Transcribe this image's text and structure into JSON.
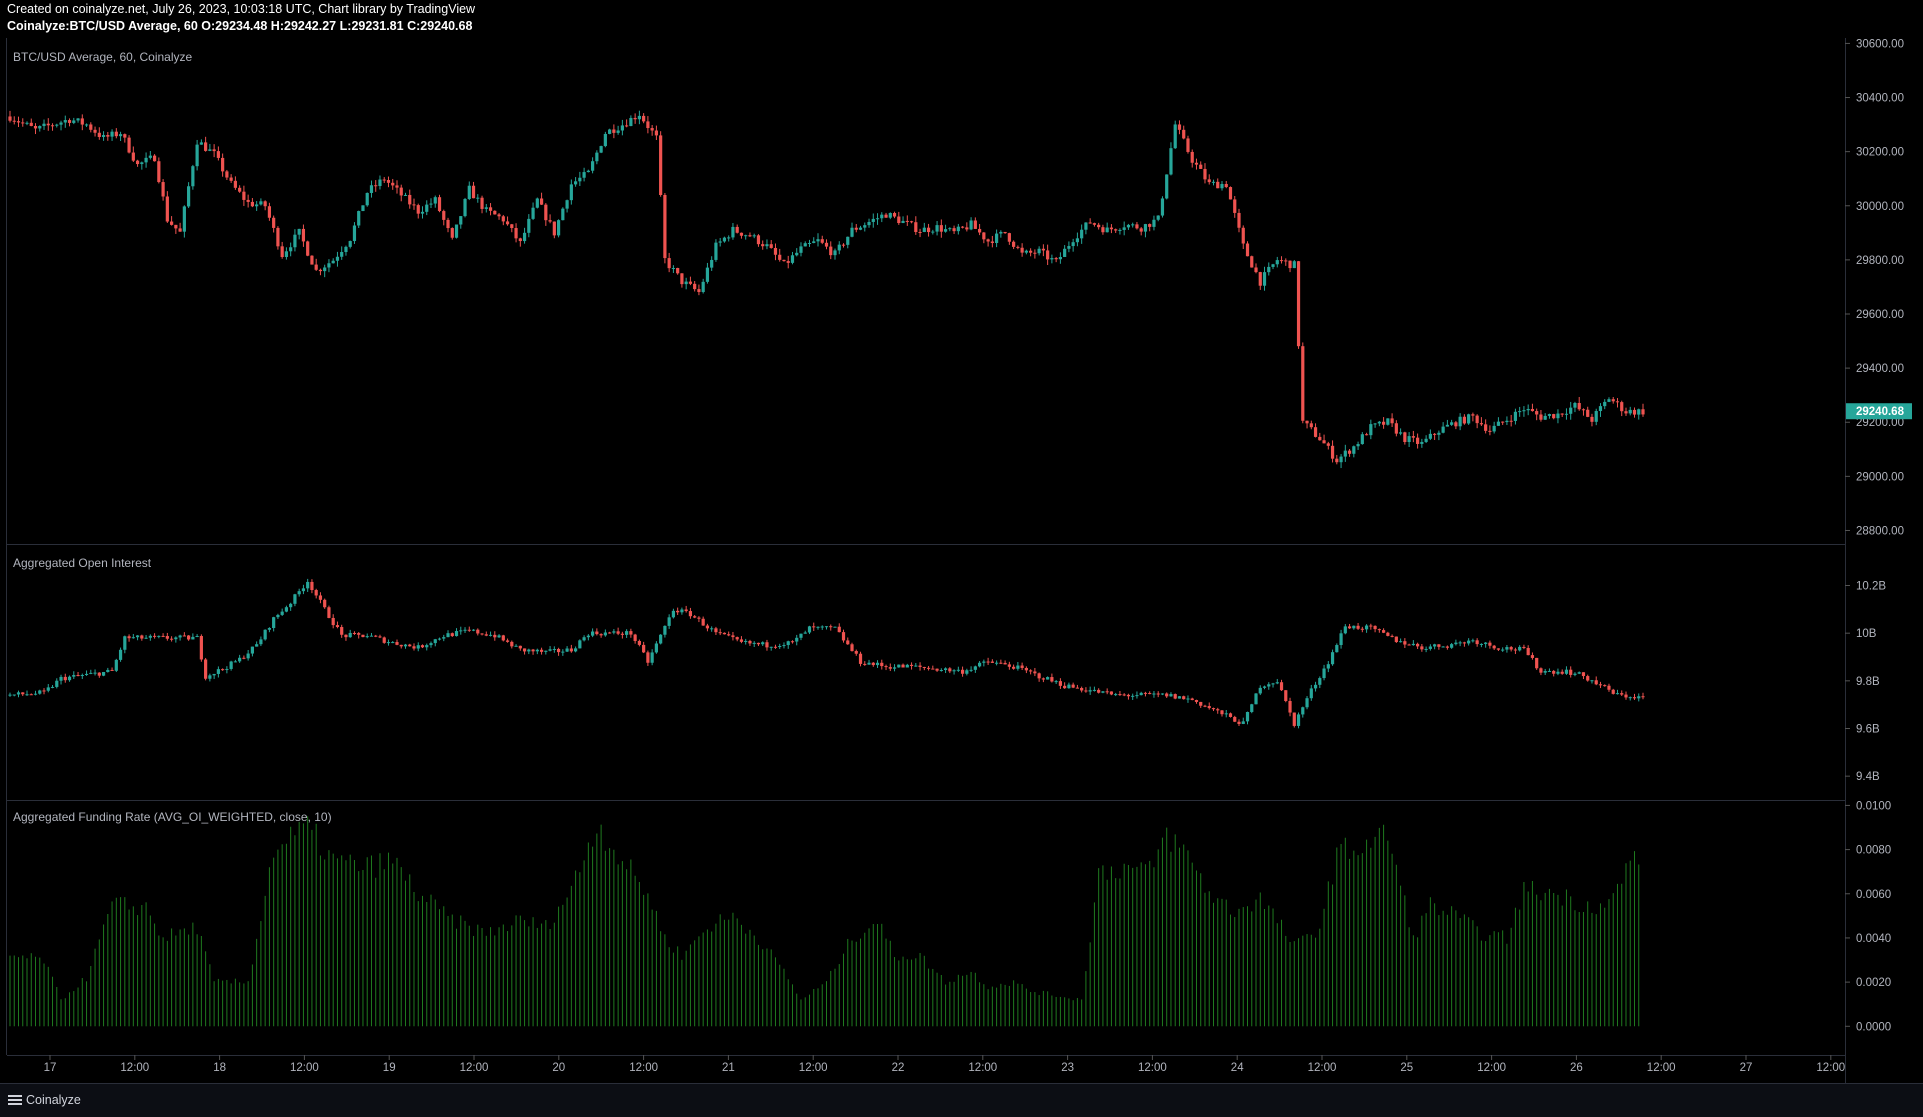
{
  "header": {
    "created_line": "Created on coinalyze.net, July 26, 2023, 10:03:18 UTC, Chart library by TradingView",
    "symbol_line": {
      "symbol": "Coinalyze:BTC/USD Average, 60",
      "o_label": "O:",
      "o": "29234.48",
      "h_label": "H:",
      "h": "29242.27",
      "l_label": "L:",
      "l": "29231.81",
      "c_label": "C:",
      "c": "29240.68"
    }
  },
  "footer": {
    "brand": "Coinalyze"
  },
  "colors": {
    "up": "#26a69a",
    "down": "#ef5350",
    "funding": "#1f7a1f",
    "grid": "#1a1d24",
    "text": "#b2b5be"
  },
  "chart_data": [
    {
      "type": "candlestick",
      "title": "BTC/USD Average, 60, Coinalyze",
      "ylim": [
        28750,
        30620
      ],
      "yticks": [
        "30600.00",
        "30400.00",
        "30200.00",
        "30000.00",
        "29800.00",
        "29600.00",
        "29400.00",
        "29200.00",
        "29000.00",
        "28800.00"
      ],
      "ytick_values": [
        30600,
        30400,
        30200,
        30000,
        29800,
        29600,
        29400,
        29200,
        29000,
        28800
      ],
      "last_price": "29240.68",
      "x_tick_labels": [
        "17",
        "12:00",
        "18",
        "12:00",
        "19",
        "12:00",
        "20",
        "12:00",
        "21",
        "12:00",
        "22",
        "12:00",
        "23",
        "12:00",
        "24",
        "12:00",
        "25",
        "12:00",
        "26",
        "12:00",
        "27",
        "12:00"
      ],
      "anchor_closes": [
        [
          0,
          30330
        ],
        [
          6,
          30280
        ],
        [
          10,
          30300
        ],
        [
          14,
          30320
        ],
        [
          18,
          30300
        ],
        [
          22,
          30250
        ],
        [
          26,
          30270
        ],
        [
          30,
          30150
        ],
        [
          34,
          30180
        ],
        [
          37,
          29950
        ],
        [
          40,
          29900
        ],
        [
          44,
          30240
        ],
        [
          48,
          30190
        ],
        [
          52,
          30080
        ],
        [
          56,
          30010
        ],
        [
          60,
          30000
        ],
        [
          64,
          29820
        ],
        [
          68,
          29900
        ],
        [
          72,
          29760
        ],
        [
          76,
          29800
        ],
        [
          80,
          29880
        ],
        [
          84,
          30050
        ],
        [
          88,
          30100
        ],
        [
          92,
          30040
        ],
        [
          96,
          29980
        ],
        [
          100,
          30020
        ],
        [
          104,
          29870
        ],
        [
          108,
          30060
        ],
        [
          112,
          29980
        ],
        [
          116,
          29950
        ],
        [
          120,
          29860
        ],
        [
          124,
          30020
        ],
        [
          128,
          29900
        ],
        [
          132,
          30080
        ],
        [
          136,
          30120
        ],
        [
          140,
          30270
        ],
        [
          144,
          30300
        ],
        [
          148,
          30340
        ],
        [
          152,
          30250
        ],
        [
          154,
          29800
        ],
        [
          158,
          29720
        ],
        [
          162,
          29680
        ],
        [
          166,
          29850
        ],
        [
          170,
          29910
        ],
        [
          174,
          29890
        ],
        [
          178,
          29850
        ],
        [
          182,
          29780
        ],
        [
          186,
          29840
        ],
        [
          190,
          29870
        ],
        [
          194,
          29820
        ],
        [
          198,
          29910
        ],
        [
          202,
          29940
        ],
        [
          206,
          29970
        ],
        [
          210,
          29940
        ],
        [
          214,
          29910
        ],
        [
          218,
          29920
        ],
        [
          222,
          29900
        ],
        [
          226,
          29930
        ],
        [
          230,
          29870
        ],
        [
          234,
          29900
        ],
        [
          238,
          29820
        ],
        [
          242,
          29830
        ],
        [
          246,
          29790
        ],
        [
          250,
          29880
        ],
        [
          254,
          29940
        ],
        [
          258,
          29910
        ],
        [
          262,
          29930
        ],
        [
          266,
          29920
        ],
        [
          270,
          29950
        ],
        [
          274,
          30300
        ],
        [
          278,
          30170
        ],
        [
          282,
          30080
        ],
        [
          286,
          30080
        ],
        [
          290,
          29850
        ],
        [
          294,
          29720
        ],
        [
          298,
          29800
        ],
        [
          302,
          29780
        ],
        [
          304,
          29200
        ],
        [
          308,
          29140
        ],
        [
          312,
          29060
        ],
        [
          316,
          29110
        ],
        [
          320,
          29180
        ],
        [
          324,
          29200
        ],
        [
          328,
          29140
        ],
        [
          332,
          29120
        ],
        [
          336,
          29170
        ],
        [
          340,
          29200
        ],
        [
          344,
          29220
        ],
        [
          348,
          29170
        ],
        [
          352,
          29210
        ],
        [
          356,
          29250
        ],
        [
          360,
          29220
        ],
        [
          364,
          29230
        ],
        [
          368,
          29260
        ],
        [
          372,
          29210
        ],
        [
          376,
          29290
        ],
        [
          380,
          29240
        ],
        [
          384,
          29240
        ]
      ]
    },
    {
      "type": "candlestick",
      "title": "Aggregated Open Interest",
      "ylim": [
        9.3,
        10.37
      ],
      "yticks": [
        "10.2B",
        "10B",
        "9.8B",
        "9.6B",
        "9.4B"
      ],
      "ytick_values": [
        10.2,
        10.0,
        9.8,
        9.6,
        9.4
      ],
      "anchor_closes": [
        [
          0,
          9.74
        ],
        [
          8,
          9.75
        ],
        [
          12,
          9.81
        ],
        [
          20,
          9.83
        ],
        [
          24,
          9.84
        ],
        [
          27,
          9.98
        ],
        [
          32,
          9.98
        ],
        [
          38,
          9.98
        ],
        [
          44,
          9.98
        ],
        [
          46,
          9.82
        ],
        [
          50,
          9.85
        ],
        [
          54,
          9.89
        ],
        [
          58,
          9.95
        ],
        [
          62,
          10.06
        ],
        [
          66,
          10.13
        ],
        [
          70,
          10.22
        ],
        [
          74,
          10.1
        ],
        [
          78,
          9.99
        ],
        [
          84,
          9.99
        ],
        [
          90,
          9.96
        ],
        [
          96,
          9.94
        ],
        [
          102,
          9.99
        ],
        [
          108,
          10.01
        ],
        [
          114,
          9.99
        ],
        [
          120,
          9.93
        ],
        [
          126,
          9.92
        ],
        [
          132,
          9.93
        ],
        [
          136,
          10.0
        ],
        [
          140,
          10.0
        ],
        [
          146,
          10.0
        ],
        [
          150,
          9.88
        ],
        [
          156,
          10.1
        ],
        [
          160,
          10.08
        ],
        [
          166,
          10.0
        ],
        [
          172,
          9.96
        ],
        [
          178,
          9.95
        ],
        [
          184,
          9.96
        ],
        [
          188,
          10.02
        ],
        [
          194,
          10.02
        ],
        [
          200,
          9.88
        ],
        [
          206,
          9.86
        ],
        [
          212,
          9.86
        ],
        [
          218,
          9.85
        ],
        [
          224,
          9.84
        ],
        [
          230,
          9.88
        ],
        [
          236,
          9.86
        ],
        [
          242,
          9.82
        ],
        [
          248,
          9.78
        ],
        [
          254,
          9.76
        ],
        [
          260,
          9.74
        ],
        [
          266,
          9.74
        ],
        [
          272,
          9.74
        ],
        [
          278,
          9.72
        ],
        [
          284,
          9.67
        ],
        [
          290,
          9.62
        ],
        [
          294,
          9.78
        ],
        [
          298,
          9.8
        ],
        [
          302,
          9.62
        ],
        [
          306,
          9.76
        ],
        [
          310,
          9.88
        ],
        [
          314,
          10.03
        ],
        [
          320,
          10.02
        ],
        [
          326,
          9.97
        ],
        [
          332,
          9.94
        ],
        [
          338,
          9.95
        ],
        [
          344,
          9.97
        ],
        [
          350,
          9.94
        ],
        [
          356,
          9.93
        ],
        [
          360,
          9.84
        ],
        [
          366,
          9.84
        ],
        [
          370,
          9.82
        ],
        [
          374,
          9.78
        ],
        [
          378,
          9.74
        ],
        [
          384,
          9.73
        ]
      ]
    },
    {
      "type": "bar",
      "title": "Aggregated Funding Rate (AVG_OI_WEIGHTED, close, 10)",
      "ylim": [
        -0.0013,
        0.0102
      ],
      "yticks": [
        "0.0100",
        "0.0080",
        "0.0060",
        "0.0040",
        "0.0020",
        "0.0000"
      ],
      "ytick_values": [
        0.01,
        0.008,
        0.006,
        0.004,
        0.002,
        0.0
      ],
      "anchor_values": [
        [
          0,
          0.0032
        ],
        [
          8,
          0.003
        ],
        [
          12,
          0.0012
        ],
        [
          18,
          0.0022
        ],
        [
          24,
          0.0055
        ],
        [
          32,
          0.0054
        ],
        [
          36,
          0.004
        ],
        [
          44,
          0.0045
        ],
        [
          48,
          0.002
        ],
        [
          56,
          0.002
        ],
        [
          62,
          0.008
        ],
        [
          70,
          0.009
        ],
        [
          76,
          0.0075
        ],
        [
          84,
          0.0072
        ],
        [
          90,
          0.0075
        ],
        [
          96,
          0.006
        ],
        [
          104,
          0.0048
        ],
        [
          112,
          0.0042
        ],
        [
          120,
          0.0048
        ],
        [
          126,
          0.0045
        ],
        [
          132,
          0.0062
        ],
        [
          138,
          0.0092
        ],
        [
          144,
          0.0075
        ],
        [
          150,
          0.006
        ],
        [
          154,
          0.004
        ],
        [
          158,
          0.0032
        ],
        [
          164,
          0.0045
        ],
        [
          170,
          0.005
        ],
        [
          176,
          0.004
        ],
        [
          182,
          0.0025
        ],
        [
          186,
          0.0012
        ],
        [
          192,
          0.002
        ],
        [
          198,
          0.004
        ],
        [
          204,
          0.0048
        ],
        [
          208,
          0.0032
        ],
        [
          214,
          0.0032
        ],
        [
          220,
          0.002
        ],
        [
          226,
          0.0025
        ],
        [
          230,
          0.0018
        ],
        [
          236,
          0.002
        ],
        [
          240,
          0.0016
        ],
        [
          246,
          0.0014
        ],
        [
          252,
          0.0012
        ],
        [
          256,
          0.007
        ],
        [
          262,
          0.0072
        ],
        [
          268,
          0.007
        ],
        [
          272,
          0.0087
        ],
        [
          278,
          0.0075
        ],
        [
          282,
          0.006
        ],
        [
          288,
          0.0052
        ],
        [
          294,
          0.0058
        ],
        [
          298,
          0.0048
        ],
        [
          302,
          0.0036
        ],
        [
          308,
          0.0045
        ],
        [
          312,
          0.0078
        ],
        [
          318,
          0.0082
        ],
        [
          324,
          0.0087
        ],
        [
          330,
          0.004
        ],
        [
          334,
          0.0055
        ],
        [
          340,
          0.005
        ],
        [
          346,
          0.0042
        ],
        [
          352,
          0.004
        ],
        [
          356,
          0.0062
        ],
        [
          364,
          0.006
        ],
        [
          370,
          0.0055
        ],
        [
          376,
          0.0055
        ],
        [
          382,
          0.0078
        ]
      ]
    }
  ]
}
